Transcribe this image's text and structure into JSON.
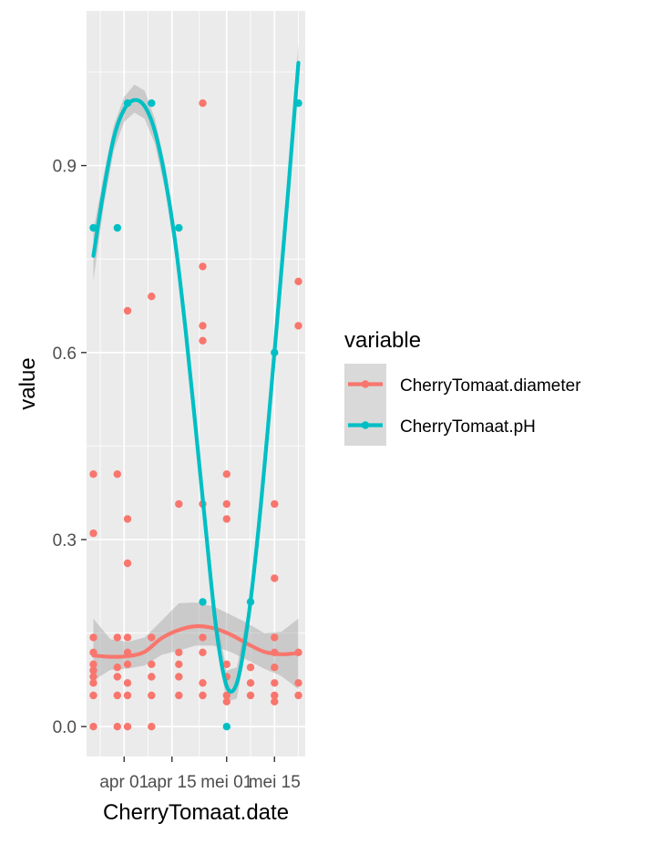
{
  "chart_data": {
    "type": "scatter",
    "xlabel": "CherryTomaat.date",
    "ylabel": "value",
    "x_range": [
      "2023-03-21",
      "2023-05-24"
    ],
    "ylim": [
      -0.048,
      1.148
    ],
    "x_ticks": [
      {
        "date": "2023-04-01",
        "label": "apr 01"
      },
      {
        "date": "2023-04-15",
        "label": "apr 15"
      },
      {
        "date": "2023-05-01",
        "label": "mei 01"
      },
      {
        "date": "2023-05-15",
        "label": "mei 15"
      }
    ],
    "y_ticks": [
      {
        "value": 0.0,
        "label": "0.0"
      },
      {
        "value": 0.3,
        "label": "0.3"
      },
      {
        "value": 0.6,
        "label": "0.6"
      },
      {
        "value": 0.9,
        "label": "0.9"
      }
    ],
    "panel_background": "#ebebeb",
    "grid": true,
    "legend": {
      "title": "variable",
      "position": "right",
      "entries": [
        "CherryTomaat.diameter",
        "CherryTomaat.pH"
      ]
    },
    "series": [
      {
        "name": "CherryTomaat.diameter",
        "color": "#F8766D",
        "points": [
          [
            "2023-03-23",
            0.405
          ],
          [
            "2023-03-23",
            0.31
          ],
          [
            "2023-03-23",
            0.143
          ],
          [
            "2023-03-23",
            0.119
          ],
          [
            "2023-03-23",
            0.1
          ],
          [
            "2023-03-23",
            0.09
          ],
          [
            "2023-03-23",
            0.08
          ],
          [
            "2023-03-23",
            0.07
          ],
          [
            "2023-03-23",
            0.05
          ],
          [
            "2023-03-23",
            0.0
          ],
          [
            "2023-03-30",
            0.405
          ],
          [
            "2023-03-30",
            0.143
          ],
          [
            "2023-03-30",
            0.095
          ],
          [
            "2023-03-30",
            0.08
          ],
          [
            "2023-03-30",
            0.05
          ],
          [
            "2023-03-30",
            0.0
          ],
          [
            "2023-04-02",
            0.667
          ],
          [
            "2023-04-02",
            0.333
          ],
          [
            "2023-04-02",
            0.262
          ],
          [
            "2023-04-02",
            0.143
          ],
          [
            "2023-04-02",
            0.119
          ],
          [
            "2023-04-02",
            0.1
          ],
          [
            "2023-04-02",
            0.07
          ],
          [
            "2023-04-02",
            0.05
          ],
          [
            "2023-04-02",
            0.0
          ],
          [
            "2023-04-09",
            0.69
          ],
          [
            "2023-04-09",
            0.143
          ],
          [
            "2023-04-09",
            0.1
          ],
          [
            "2023-04-09",
            0.08
          ],
          [
            "2023-04-09",
            0.05
          ],
          [
            "2023-04-09",
            0.0
          ],
          [
            "2023-04-17",
            0.357
          ],
          [
            "2023-04-17",
            0.119
          ],
          [
            "2023-04-17",
            0.1
          ],
          [
            "2023-04-17",
            0.08
          ],
          [
            "2023-04-17",
            0.05
          ],
          [
            "2023-04-24",
            1.0
          ],
          [
            "2023-04-24",
            0.738
          ],
          [
            "2023-04-24",
            0.643
          ],
          [
            "2023-04-24",
            0.619
          ],
          [
            "2023-04-24",
            0.357
          ],
          [
            "2023-04-24",
            0.143
          ],
          [
            "2023-04-24",
            0.119
          ],
          [
            "2023-04-24",
            0.07
          ],
          [
            "2023-04-24",
            0.05
          ],
          [
            "2023-05-01",
            0.405
          ],
          [
            "2023-05-01",
            0.357
          ],
          [
            "2023-05-01",
            0.333
          ],
          [
            "2023-05-01",
            0.1
          ],
          [
            "2023-05-01",
            0.08
          ],
          [
            "2023-05-01",
            0.05
          ],
          [
            "2023-05-01",
            0.04
          ],
          [
            "2023-05-08",
            0.095
          ],
          [
            "2023-05-08",
            0.07
          ],
          [
            "2023-05-08",
            0.05
          ],
          [
            "2023-05-15",
            0.357
          ],
          [
            "2023-05-15",
            0.238
          ],
          [
            "2023-05-15",
            0.143
          ],
          [
            "2023-05-15",
            0.119
          ],
          [
            "2023-05-15",
            0.095
          ],
          [
            "2023-05-15",
            0.07
          ],
          [
            "2023-05-15",
            0.05
          ],
          [
            "2023-05-15",
            0.04
          ],
          [
            "2023-05-22",
            0.714
          ],
          [
            "2023-05-22",
            0.643
          ],
          [
            "2023-05-22",
            0.119
          ],
          [
            "2023-05-22",
            0.07
          ],
          [
            "2023-05-22",
            0.05
          ]
        ],
        "smooth": [
          [
            "2023-03-23",
            0.114
          ],
          [
            "2023-03-28",
            0.112
          ],
          [
            "2023-04-02",
            0.113
          ],
          [
            "2023-04-07",
            0.12
          ],
          [
            "2023-04-12",
            0.142
          ],
          [
            "2023-04-17",
            0.155
          ],
          [
            "2023-04-22",
            0.161
          ],
          [
            "2023-04-27",
            0.158
          ],
          [
            "2023-05-02",
            0.148
          ],
          [
            "2023-05-07",
            0.133
          ],
          [
            "2023-05-12",
            0.12
          ],
          [
            "2023-05-17",
            0.116
          ],
          [
            "2023-05-22",
            0.118
          ]
        ],
        "ribbon": [
          [
            "2023-03-23",
            0.074,
            0.173
          ],
          [
            "2023-03-28",
            0.091,
            0.14
          ],
          [
            "2023-04-02",
            0.093,
            0.136
          ],
          [
            "2023-04-07",
            0.098,
            0.143
          ],
          [
            "2023-04-12",
            0.115,
            0.17
          ],
          [
            "2023-04-17",
            0.122,
            0.198
          ],
          [
            "2023-04-22",
            0.13,
            0.199
          ],
          [
            "2023-04-27",
            0.13,
            0.193
          ],
          [
            "2023-05-02",
            0.12,
            0.18
          ],
          [
            "2023-05-07",
            0.107,
            0.166
          ],
          [
            "2023-05-12",
            0.093,
            0.15
          ],
          [
            "2023-05-17",
            0.081,
            0.152
          ],
          [
            "2023-05-22",
            0.06,
            0.173
          ]
        ]
      },
      {
        "name": "CherryTomaat.pH",
        "color": "#00BFC4",
        "points": [
          [
            "2023-03-23",
            0.8
          ],
          [
            "2023-03-30",
            0.8
          ],
          [
            "2023-04-02",
            1.0
          ],
          [
            "2023-04-09",
            1.0
          ],
          [
            "2023-04-17",
            0.8
          ],
          [
            "2023-04-24",
            0.2
          ],
          [
            "2023-05-01",
            0.0
          ],
          [
            "2023-05-08",
            0.2
          ],
          [
            "2023-05-15",
            0.6
          ],
          [
            "2023-05-22",
            1.0
          ]
        ],
        "smooth": [
          [
            "2023-03-23",
            0.755
          ],
          [
            "2023-03-26",
            0.86
          ],
          [
            "2023-03-29",
            0.945
          ],
          [
            "2023-04-01",
            0.99
          ],
          [
            "2023-04-04",
            1.005
          ],
          [
            "2023-04-07",
            0.995
          ],
          [
            "2023-04-10",
            0.955
          ],
          [
            "2023-04-13",
            0.88
          ],
          [
            "2023-04-16",
            0.775
          ],
          [
            "2023-04-19",
            0.635
          ],
          [
            "2023-04-22",
            0.475
          ],
          [
            "2023-04-25",
            0.31
          ],
          [
            "2023-04-28",
            0.155
          ],
          [
            "2023-05-01",
            0.065
          ],
          [
            "2023-05-04",
            0.07
          ],
          [
            "2023-05-07",
            0.16
          ],
          [
            "2023-05-10",
            0.3
          ],
          [
            "2023-05-13",
            0.475
          ],
          [
            "2023-05-16",
            0.665
          ],
          [
            "2023-05-19",
            0.86
          ],
          [
            "2023-05-22",
            1.065
          ]
        ],
        "ribbon": [
          [
            "2023-03-23",
            0.715,
            0.795
          ],
          [
            "2023-03-26",
            0.835,
            0.885
          ],
          [
            "2023-03-29",
            0.925,
            0.965
          ],
          [
            "2023-04-01",
            0.97,
            1.01
          ],
          [
            "2023-04-04",
            0.985,
            1.03
          ],
          [
            "2023-04-07",
            0.975,
            1.02
          ],
          [
            "2023-04-10",
            0.935,
            0.975
          ],
          [
            "2023-04-13",
            0.86,
            0.9
          ],
          [
            "2023-04-16",
            0.755,
            0.795
          ],
          [
            "2023-04-19",
            0.615,
            0.655
          ],
          [
            "2023-04-22",
            0.455,
            0.495
          ],
          [
            "2023-04-25",
            0.29,
            0.33
          ],
          [
            "2023-04-28",
            0.135,
            0.175
          ],
          [
            "2023-05-01",
            0.04,
            0.09
          ],
          [
            "2023-05-04",
            0.045,
            0.095
          ],
          [
            "2023-05-07",
            0.14,
            0.18
          ],
          [
            "2023-05-10",
            0.28,
            0.32
          ],
          [
            "2023-05-13",
            0.455,
            0.495
          ],
          [
            "2023-05-16",
            0.645,
            0.685
          ],
          [
            "2023-05-19",
            0.835,
            0.885
          ],
          [
            "2023-05-22",
            1.035,
            1.095
          ]
        ]
      }
    ]
  }
}
